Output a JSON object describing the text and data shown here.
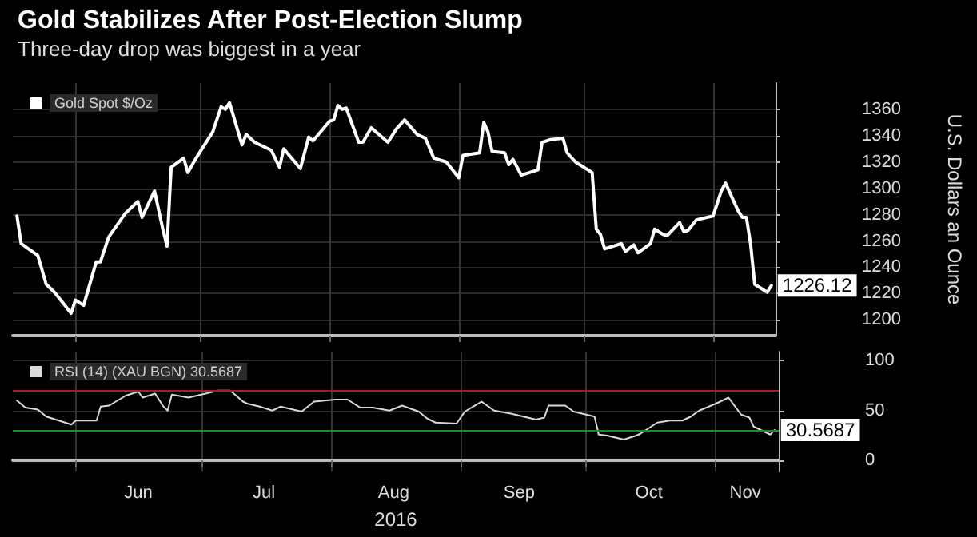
{
  "chart_data": [
    {
      "type": "line",
      "title": "Gold Stabilizes After Post-Election Slump",
      "subtitle": "Three-day drop was biggest in a year",
      "ylabel": "U.S. Dollars an Ounce",
      "x": [
        "2016-05-18",
        "2016-05-19",
        "2016-05-23",
        "2016-05-25",
        "2016-05-27",
        "2016-05-31",
        "2016-06-01",
        "2016-06-03",
        "2016-06-06",
        "2016-06-07",
        "2016-06-09",
        "2016-06-13",
        "2016-06-16",
        "2016-06-17",
        "2016-06-20",
        "2016-06-22",
        "2016-06-23",
        "2016-06-24",
        "2016-06-27",
        "2016-06-28",
        "2016-06-30",
        "2016-07-04",
        "2016-07-06",
        "2016-07-07",
        "2016-07-08",
        "2016-07-11",
        "2016-07-12",
        "2016-07-14",
        "2016-07-18",
        "2016-07-20",
        "2016-07-21",
        "2016-07-25",
        "2016-07-27",
        "2016-07-28",
        "2016-08-01",
        "2016-08-02",
        "2016-08-03",
        "2016-08-04",
        "2016-08-05",
        "2016-08-08",
        "2016-08-09",
        "2016-08-11",
        "2016-08-15",
        "2016-08-17",
        "2016-08-19",
        "2016-08-22",
        "2016-08-24",
        "2016-08-26",
        "2016-08-29",
        "2016-09-01",
        "2016-09-02",
        "2016-09-06",
        "2016-09-07",
        "2016-09-08",
        "2016-09-09",
        "2016-09-12",
        "2016-09-13",
        "2016-09-14",
        "2016-09-16",
        "2016-09-20",
        "2016-09-21",
        "2016-09-23",
        "2016-09-26",
        "2016-09-27",
        "2016-09-29",
        "2016-10-03",
        "2016-10-04",
        "2016-10-05",
        "2016-10-06",
        "2016-10-10",
        "2016-10-11",
        "2016-10-13",
        "2016-10-14",
        "2016-10-17",
        "2016-10-18",
        "2016-10-20",
        "2016-10-21",
        "2016-10-24",
        "2016-10-25",
        "2016-10-26",
        "2016-10-28",
        "2016-11-01",
        "2016-11-03",
        "2016-11-04",
        "2016-11-07",
        "2016-11-08",
        "2016-11-09",
        "2016-11-10",
        "2016-11-11",
        "2016-11-14",
        "2016-11-15"
      ],
      "series": [
        {
          "name": "Gold Spot $/Oz",
          "color": "#ffffff",
          "values": [
            1279,
            1258,
            1249,
            1227,
            1221,
            1205,
            1215,
            1211,
            1244,
            1244,
            1263,
            1281,
            1290,
            1278,
            1298,
            1269,
            1256,
            1316,
            1323,
            1312,
            1323,
            1343,
            1362,
            1360,
            1365,
            1333,
            1341,
            1335,
            1329,
            1316,
            1330,
            1315,
            1339,
            1336,
            1351,
            1352,
            1363,
            1360,
            1361,
            1335,
            1335,
            1346,
            1335,
            1345,
            1352,
            1341,
            1338,
            1323,
            1320,
            1308,
            1325,
            1327,
            1350,
            1343,
            1328,
            1327,
            1318,
            1322,
            1310,
            1314,
            1335,
            1337,
            1338,
            1327,
            1320,
            1312,
            1269,
            1265,
            1254,
            1258,
            1252,
            1257,
            1251,
            1258,
            1269,
            1265,
            1264,
            1274,
            1267,
            1268,
            1276,
            1279,
            1298,
            1304,
            1283,
            1278,
            1278,
            1258,
            1227,
            1221,
            1226.12
          ]
        }
      ],
      "annotations": [
        {
          "text": "1226.12",
          "x": "2016-11-15",
          "y": 1226.12
        }
      ],
      "xlim": [
        "2016-05-17",
        "2016-11-16"
      ],
      "xticks": [
        {
          "value": "2016-06-01",
          "label": null
        },
        {
          "value": "2016-07-01",
          "label": null
        },
        {
          "value": "2016-08-01",
          "label": null
        },
        {
          "value": "2016-09-01",
          "label": null
        },
        {
          "value": "2016-10-01",
          "label": null
        },
        {
          "value": "2016-11-01",
          "label": null
        }
      ],
      "ylim": [
        1188,
        1380
      ],
      "yticks": [
        1200,
        1220,
        1240,
        1260,
        1280,
        1300,
        1320,
        1340,
        1360
      ],
      "tick_labels": "y",
      "grid": true,
      "legend": "top left",
      "marker": "none",
      "line_style": "solid"
    },
    {
      "type": "line",
      "xlabel": "2016",
      "x": [
        "2016-05-18",
        "2016-05-20",
        "2016-05-23",
        "2016-05-25",
        "2016-05-31",
        "2016-06-01",
        "2016-06-06",
        "2016-06-07",
        "2016-06-09",
        "2016-06-13",
        "2016-06-16",
        "2016-06-17",
        "2016-06-20",
        "2016-06-22",
        "2016-06-23",
        "2016-06-24",
        "2016-06-28",
        "2016-06-30",
        "2016-07-05",
        "2016-07-08",
        "2016-07-11",
        "2016-07-12",
        "2016-07-15",
        "2016-07-18",
        "2016-07-20",
        "2016-07-25",
        "2016-07-28",
        "2016-08-02",
        "2016-08-05",
        "2016-08-08",
        "2016-08-11",
        "2016-08-15",
        "2016-08-18",
        "2016-08-22",
        "2016-08-24",
        "2016-08-26",
        "2016-08-31",
        "2016-09-02",
        "2016-09-06",
        "2016-09-09",
        "2016-09-13",
        "2016-09-14",
        "2016-09-19",
        "2016-09-21",
        "2016-09-22",
        "2016-09-26",
        "2016-09-28",
        "2016-10-03",
        "2016-10-04",
        "2016-10-06",
        "2016-10-10",
        "2016-10-13",
        "2016-10-14",
        "2016-10-18",
        "2016-10-21",
        "2016-10-24",
        "2016-10-26",
        "2016-10-28",
        "2016-11-01",
        "2016-11-04",
        "2016-11-07",
        "2016-11-09",
        "2016-11-10",
        "2016-11-14",
        "2016-11-15"
      ],
      "series": [
        {
          "name": "RSI (14) (XAU BGN) 30.5687",
          "color": "#d9d9d9",
          "values": [
            60,
            53,
            51,
            44,
            36,
            40,
            40,
            54,
            55,
            65,
            69,
            63,
            67,
            54,
            50,
            66,
            63,
            65,
            70,
            70,
            59,
            57,
            54,
            50,
            54,
            49,
            59,
            61,
            61,
            53,
            53,
            50,
            55,
            49,
            42,
            38,
            37,
            49,
            59,
            50,
            47,
            46,
            41,
            43,
            55,
            55,
            49,
            44,
            26,
            25,
            21,
            25,
            27,
            38,
            40,
            40,
            44,
            50,
            57,
            63,
            46,
            43,
            34,
            26,
            30.5687
          ]
        }
      ],
      "annotations": [
        {
          "text": "30.5687",
          "x": "2016-11-15",
          "y": 30.5687
        }
      ],
      "ref_lines": [
        {
          "axis": "y",
          "value": 70,
          "color": "#b01c1c"
        },
        {
          "axis": "y",
          "value": 30,
          "color": "#1e8c1e"
        }
      ],
      "xlim": [
        "2016-05-17",
        "2016-11-16"
      ],
      "xticks": [
        {
          "value": "2016-06-01",
          "label": null
        },
        {
          "value": "2016-06-16",
          "label": "Jun"
        },
        {
          "value": "2016-07-01",
          "label": null
        },
        {
          "value": "2016-07-16",
          "label": "Jul"
        },
        {
          "value": "2016-08-01",
          "label": null
        },
        {
          "value": "2016-08-16",
          "label": "Aug"
        },
        {
          "value": "2016-09-01",
          "label": null
        },
        {
          "value": "2016-09-15",
          "label": "Sep"
        },
        {
          "value": "2016-10-01",
          "label": null
        },
        {
          "value": "2016-10-16",
          "label": "Oct"
        },
        {
          "value": "2016-11-01",
          "label": null
        },
        {
          "value": "2016-11-08",
          "label": "Nov"
        }
      ],
      "ylim": [
        -11,
        109
      ],
      "yticks": [
        0,
        50,
        100
      ],
      "grid": true,
      "legend": "top left",
      "marker": "none",
      "line_style": "solid"
    }
  ]
}
